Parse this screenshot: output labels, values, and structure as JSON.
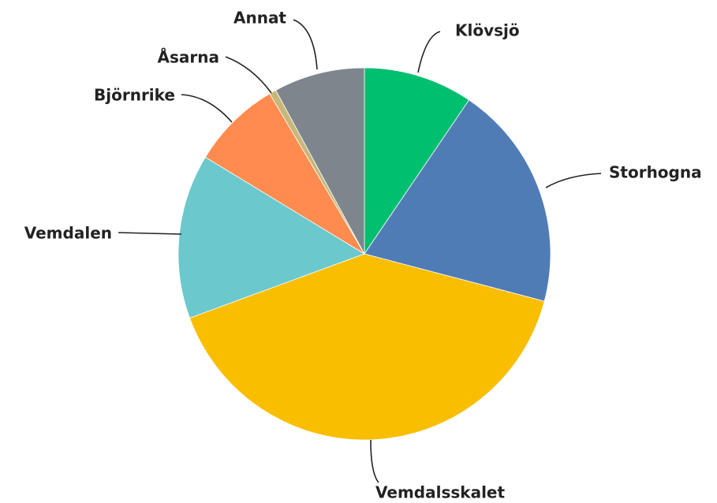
{
  "chart_data": {
    "type": "pie",
    "categories": [
      "Klövsjö",
      "Storhogna",
      "Vemdalsskalet",
      "Vemdalen",
      "Björnrike",
      "Åsarna",
      "Annat"
    ],
    "values": [
      9.5,
      19.6,
      40.3,
      14.3,
      7.8,
      0.6,
      7.9
    ],
    "colors": [
      "#00bf6f",
      "#507cb6",
      "#f9be00",
      "#6bc8cd",
      "#ff8b4f",
      "#c9b77a",
      "#7d868c"
    ]
  }
}
